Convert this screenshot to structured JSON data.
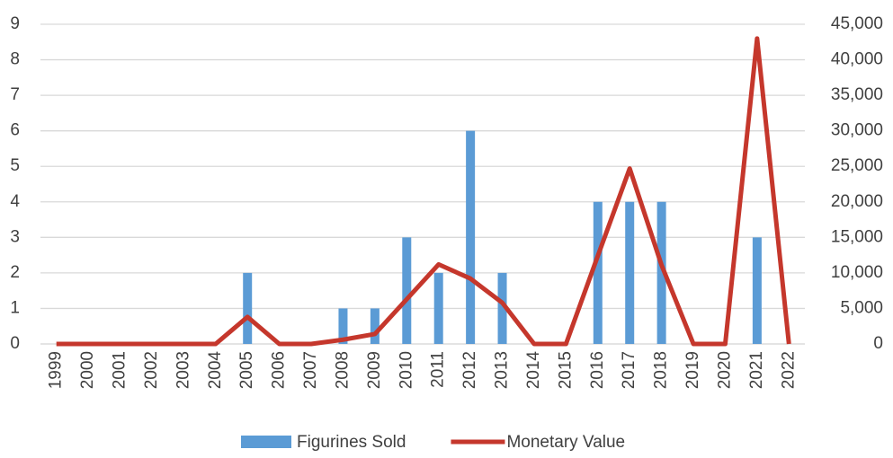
{
  "chart_data": {
    "type": "bar-line",
    "categories": [
      "1999",
      "2000",
      "2001",
      "2002",
      "2003",
      "2004",
      "2005",
      "2006",
      "2007",
      "2008",
      "2009",
      "2010",
      "2011",
      "2012",
      "2013",
      "2014",
      "2015",
      "2016",
      "2017",
      "2018",
      "2019",
      "2020",
      "2021",
      "2022"
    ],
    "series": [
      {
        "name": "Figurines Sold",
        "type": "bar",
        "color": "#5b9bd5",
        "axis": "y",
        "values": [
          0,
          0,
          0,
          0,
          0,
          0,
          2,
          0,
          0,
          1,
          1,
          3,
          2,
          6,
          2,
          0,
          0,
          4,
          4,
          4,
          0,
          0,
          3,
          0
        ]
      },
      {
        "name": "Monetary Value",
        "type": "line",
        "color": "#c5372c",
        "axis": "y2",
        "values": [
          0,
          0,
          0,
          0,
          0,
          0,
          3800,
          0,
          0,
          600,
          1400,
          6300,
          11200,
          9200,
          5800,
          0,
          0,
          12400,
          24700,
          11100,
          0,
          0,
          43000,
          0
        ]
      }
    ],
    "ylim": [
      0,
      9
    ],
    "yticks": [
      0,
      1,
      2,
      3,
      4,
      5,
      6,
      7,
      8,
      9
    ],
    "y2lim": [
      0,
      45000
    ],
    "y2ticks": [
      0,
      {
        "value": 5000,
        "label": "5,000"
      },
      {
        "value": 10000,
        "label": "10,000"
      },
      {
        "value": 15000,
        "label": "15,000"
      },
      {
        "value": 20000,
        "label": "20,000"
      },
      {
        "value": 25000,
        "label": "25,000"
      },
      {
        "value": 30000,
        "label": "30,000"
      },
      {
        "value": 35000,
        "label": "35,000"
      },
      {
        "value": 40000,
        "label": "40,000"
      },
      {
        "value": 45000,
        "label": "45,000"
      }
    ],
    "grid": true,
    "legend": "bottom"
  }
}
